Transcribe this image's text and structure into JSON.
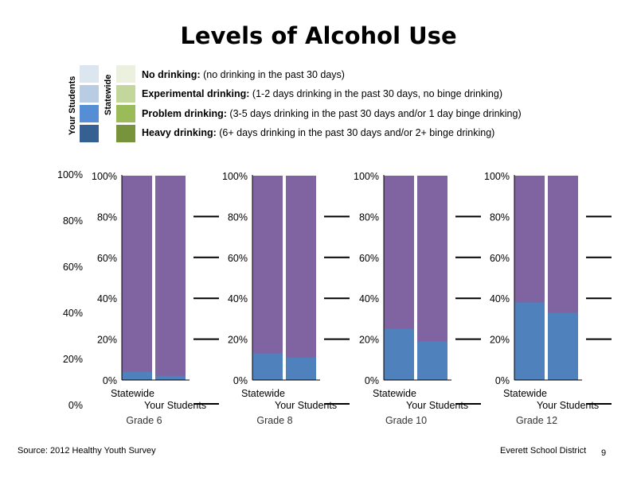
{
  "title": "Levels of Alcohol Use",
  "legend": {
    "your_label": "Your Students",
    "state_label": "Statewide",
    "your_colors": [
      "#dce6f1",
      "#b8cce4",
      "#558ed5",
      "#376092"
    ],
    "state_colors": [
      "#ebf1de",
      "#c3d69b",
      "#9bbb59",
      "#77933c"
    ],
    "items": [
      {
        "name": "No drinking:",
        "desc": " (no drinking in the past 30 days)"
      },
      {
        "name": "Experimental drinking:",
        "desc": " (1-2 days drinking in the past 30 days, no binge drinking)"
      },
      {
        "name": "Problem drinking:",
        "desc": " (3-5 days drinking in the past 30 days and/or 1 day binge drinking)"
      },
      {
        "name": "Heavy drinking:",
        "desc": " (6+ days drinking in the past 30 days and/or 2+ binge drinking)"
      }
    ]
  },
  "chart_data": {
    "type": "bar",
    "stacked": true,
    "ylim": [
      0,
      100
    ],
    "yticks": [
      "0%",
      "20%",
      "40%",
      "60%",
      "80%",
      "100%"
    ],
    "outer_yticks": [
      "0%",
      "20%",
      "40%",
      "60%",
      "80%",
      "100%"
    ],
    "bar_labels": [
      "Statewide",
      "Your Students"
    ],
    "colors": {
      "top": "#8064a2",
      "bottom": "#4f81bd"
    },
    "panels": [
      {
        "grade": "Grade 6",
        "values": [
          4,
          2
        ]
      },
      {
        "grade": "Grade 8",
        "values": [
          13,
          11
        ]
      },
      {
        "grade": "Grade 10",
        "values": [
          25,
          19
        ]
      },
      {
        "grade": "Grade 12",
        "values": [
          38,
          33
        ]
      }
    ]
  },
  "footer": {
    "source": "Source: 2012 Healthy Youth Survey",
    "district": "Everett School District",
    "page": "9"
  }
}
